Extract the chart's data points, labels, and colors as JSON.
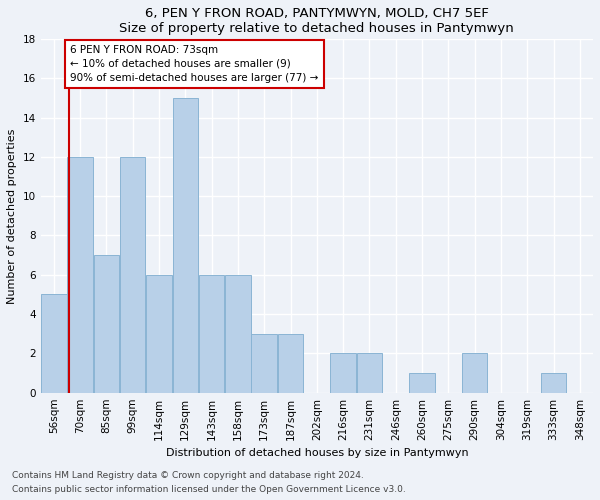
{
  "title": "6, PEN Y FRON ROAD, PANTYMWYN, MOLD, CH7 5EF",
  "subtitle": "Size of property relative to detached houses in Pantymwyn",
  "xlabel": "Distribution of detached houses by size in Pantymwyn",
  "ylabel": "Number of detached properties",
  "categories": [
    "56sqm",
    "70sqm",
    "85sqm",
    "99sqm",
    "114sqm",
    "129sqm",
    "143sqm",
    "158sqm",
    "173sqm",
    "187sqm",
    "202sqm",
    "216sqm",
    "231sqm",
    "246sqm",
    "260sqm",
    "275sqm",
    "290sqm",
    "304sqm",
    "319sqm",
    "333sqm",
    "348sqm"
  ],
  "values": [
    5,
    12,
    7,
    12,
    6,
    15,
    6,
    6,
    3,
    3,
    0,
    2,
    2,
    0,
    1,
    0,
    2,
    0,
    0,
    1,
    0
  ],
  "bar_color": "#b8d0e8",
  "bar_edge_color": "#8ab4d4",
  "vline_x": 0.575,
  "annotation_text": "6 PEN Y FRON ROAD: 73sqm\n← 10% of detached houses are smaller (9)\n90% of semi-detached houses are larger (77) →",
  "annotation_box_facecolor": "#ffffff",
  "annotation_box_edgecolor": "#cc0000",
  "vline_color": "#cc0000",
  "ylim": [
    0,
    18
  ],
  "yticks": [
    0,
    2,
    4,
    6,
    8,
    10,
    12,
    14,
    16,
    18
  ],
  "footnote1": "Contains HM Land Registry data © Crown copyright and database right 2024.",
  "footnote2": "Contains public sector information licensed under the Open Government Licence v3.0.",
  "bg_color": "#eef2f8",
  "plot_bg_color": "#eef2f8",
  "grid_color": "#ffffff",
  "title_fontsize": 9.5,
  "axis_label_fontsize": 8,
  "tick_fontsize": 7.5,
  "annot_fontsize": 7.5
}
